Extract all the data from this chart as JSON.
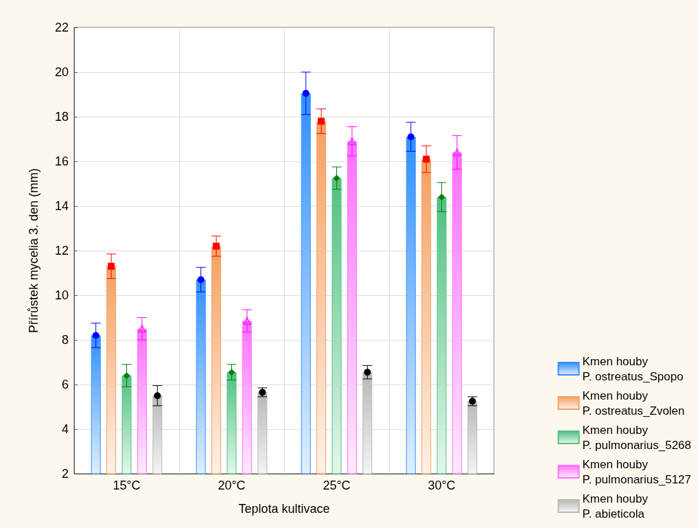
{
  "chart_data": {
    "type": "bar",
    "xlabel": "Teplota kultivace",
    "ylabel": "Přírůstek mycelia 3. den (mm)",
    "categories": [
      "15°C",
      "20°C",
      "25°C",
      "30°C"
    ],
    "ylim": [
      2,
      22
    ],
    "yticks": [
      2,
      4,
      6,
      8,
      10,
      12,
      14,
      16,
      18,
      20,
      22
    ],
    "grid": true,
    "legend": "bottom right",
    "series": [
      {
        "name": "Kmen houby\nP. ostreatus_Spopo",
        "color": "#3090ff",
        "values": [
          8.2,
          10.7,
          19.05,
          17.1
        ]
      },
      {
        "name": "Kmen houby\nP. ostreatus_Zvolen",
        "color": "#f5a060",
        "values": [
          11.3,
          12.2,
          17.8,
          16.1
        ]
      },
      {
        "name": "Kmen houby\nP. pulmonarius_5268",
        "color": "#50c080",
        "values": [
          6.4,
          6.55,
          15.25,
          14.4
        ]
      },
      {
        "name": "Kmen houby\nP. pulmonarius_5127",
        "color": "#ff70ff",
        "values": [
          8.5,
          8.85,
          16.9,
          16.4
        ]
      },
      {
        "name": "Kmen houby\nP. abieticola",
        "color": "#b8b8b8",
        "values": [
          5.5,
          5.65,
          6.55,
          5.25
        ]
      },
      {
        "type": "scatter",
        "color": "#0000ff",
        "marker": "circle",
        "x": [
          "15°C",
          "20°C",
          "25°C",
          "30°C"
        ],
        "values": [
          8.2,
          10.7,
          19.05,
          17.1
        ],
        "errors": [
          0.55,
          0.55,
          0.95,
          0.65
        ]
      },
      {
        "type": "scatter",
        "color": "#ff0000",
        "marker": "square",
        "x": [
          "15°C",
          "20°C",
          "25°C",
          "30°C"
        ],
        "values": [
          11.3,
          12.2,
          17.8,
          16.1
        ],
        "errors": [
          0.55,
          0.45,
          0.55,
          0.6
        ]
      },
      {
        "type": "scatter",
        "color": "#008000",
        "marker": "diamond",
        "x": [
          "15°C",
          "20°C",
          "25°C",
          "30°C"
        ],
        "values": [
          6.4,
          6.55,
          15.25,
          14.4
        ],
        "errors": [
          0.5,
          0.35,
          0.5,
          0.65
        ]
      },
      {
        "type": "scatter",
        "color": "#ff00ff",
        "marker": "triangle",
        "x": [
          "15°C",
          "20°C",
          "25°C",
          "30°C"
        ],
        "values": [
          8.5,
          8.85,
          16.9,
          16.4
        ],
        "errors": [
          0.5,
          0.5,
          0.65,
          0.75
        ]
      },
      {
        "type": "scatter",
        "color": "#000000",
        "marker": "circle",
        "x": [
          "15°C",
          "20°C",
          "25°C",
          "30°C"
        ],
        "values": [
          5.5,
          5.65,
          6.55,
          5.25
        ],
        "errors": [
          0.45,
          0.2,
          0.3,
          0.2
        ]
      }
    ]
  }
}
